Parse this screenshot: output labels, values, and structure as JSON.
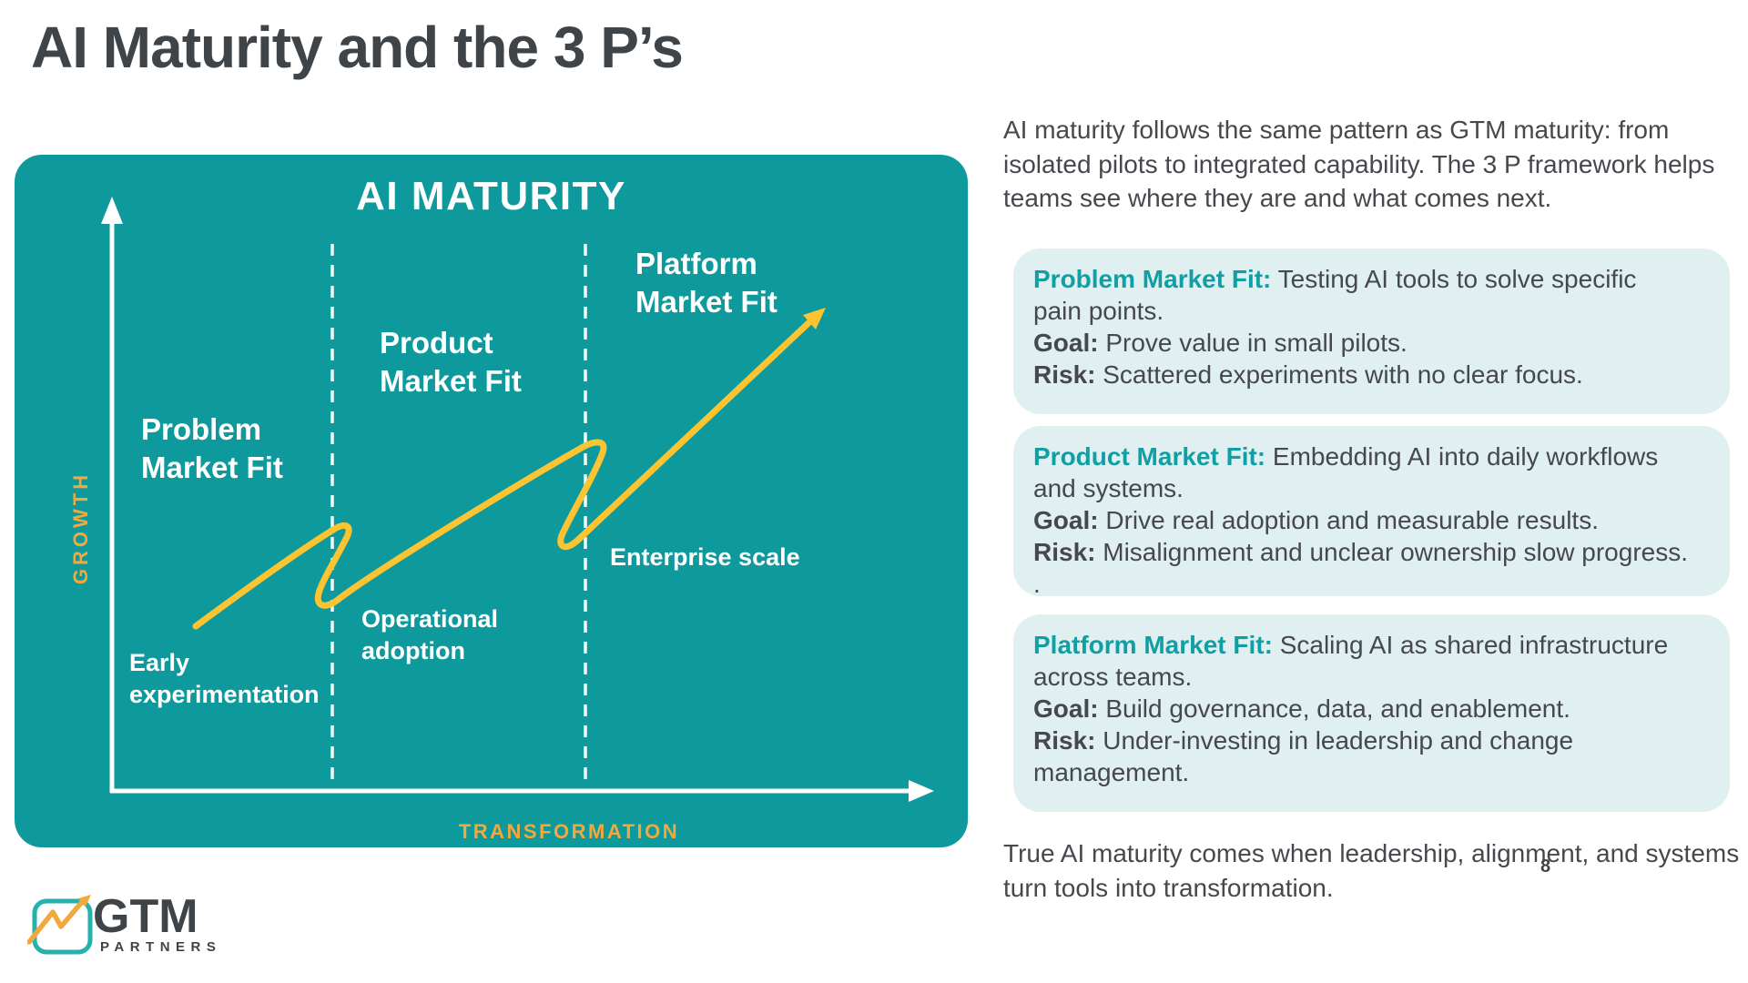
{
  "colors": {
    "teal": "#0e9a9c",
    "card_bg": "#e0eff0",
    "accent": "#0f9fa4",
    "gold": "#fdc431",
    "orange": "#f3a83e",
    "dark": "#45484d",
    "dark_title": "#3f4449",
    "logo_teal": "#27b1ad"
  },
  "slide": {
    "title": "AI Maturity and the 3 P’s",
    "page_number": "8"
  },
  "figure": {
    "heading": "AI MATURITY",
    "y_axis_label": "GROWTH",
    "x_axis_label": "TRANSFORMATION",
    "curve_description": "yellow arrow rising left to right with two setback loops",
    "zones": [
      {
        "label_lines": [
          "Problem",
          "Market Fit"
        ],
        "note_lines": [
          "Early",
          "experimentation"
        ]
      },
      {
        "label_lines": [
          "Product",
          "Market Fit"
        ],
        "note_lines": [
          "Operational",
          "adoption"
        ]
      },
      {
        "label_lines": [
          "Platform",
          "Market Fit"
        ],
        "note_lines": [
          "Enterprise scale"
        ]
      }
    ]
  },
  "intro_lines": [
    "AI maturity follows the same pattern as GTM maturity: from",
    "isolated pilots to integrated capability. The 3 P framework helps",
    "teams see where they are and what comes next."
  ],
  "cards": [
    {
      "lines": [
        [
          {
            "t": "Problem Market Fit:",
            "b": 1,
            "c": 1
          },
          {
            "t": " Testing AI tools to solve specific"
          }
        ],
        [
          {
            "t": "pain points."
          }
        ],
        [
          {
            "t": "Goal:",
            "b": 1
          },
          {
            "t": " Prove value in small pilots."
          }
        ],
        [
          {
            "t": "Risk:",
            "b": 1
          },
          {
            "t": " Scattered experiments with no clear focus."
          }
        ]
      ]
    },
    {
      "lines": [
        [
          {
            "t": "Product Market Fit:",
            "b": 1,
            "c": 1
          },
          {
            "t": " Embedding AI into daily workflows"
          }
        ],
        [
          {
            "t": "and systems."
          }
        ],
        [
          {
            "t": "Goal:",
            "b": 1
          },
          {
            "t": " Drive real adoption and measurable results."
          }
        ],
        [
          {
            "t": "Risk:",
            "b": 1
          },
          {
            "t": " Misalignment and unclear ownership slow progress."
          }
        ],
        [
          {
            "t": "."
          }
        ]
      ]
    },
    {
      "lines": [
        [
          {
            "t": "Platform Market Fit:",
            "b": 1,
            "c": 1
          },
          {
            "t": " Scaling AI as shared infrastructure"
          }
        ],
        [
          {
            "t": "across teams."
          }
        ],
        [
          {
            "t": "Goal:",
            "b": 1
          },
          {
            "t": " Build governance, data, and enablement."
          }
        ],
        [
          {
            "t": "Risk:",
            "b": 1
          },
          {
            "t": " Under-investing in leadership and change"
          }
        ],
        [
          {
            "t": "management."
          }
        ]
      ]
    }
  ],
  "closing_lines": [
    "True AI maturity comes when leadership, alignment, and systems",
    "turn tools into transformation."
  ],
  "logo": {
    "name": "GTM",
    "sub": "PARTNERS"
  }
}
